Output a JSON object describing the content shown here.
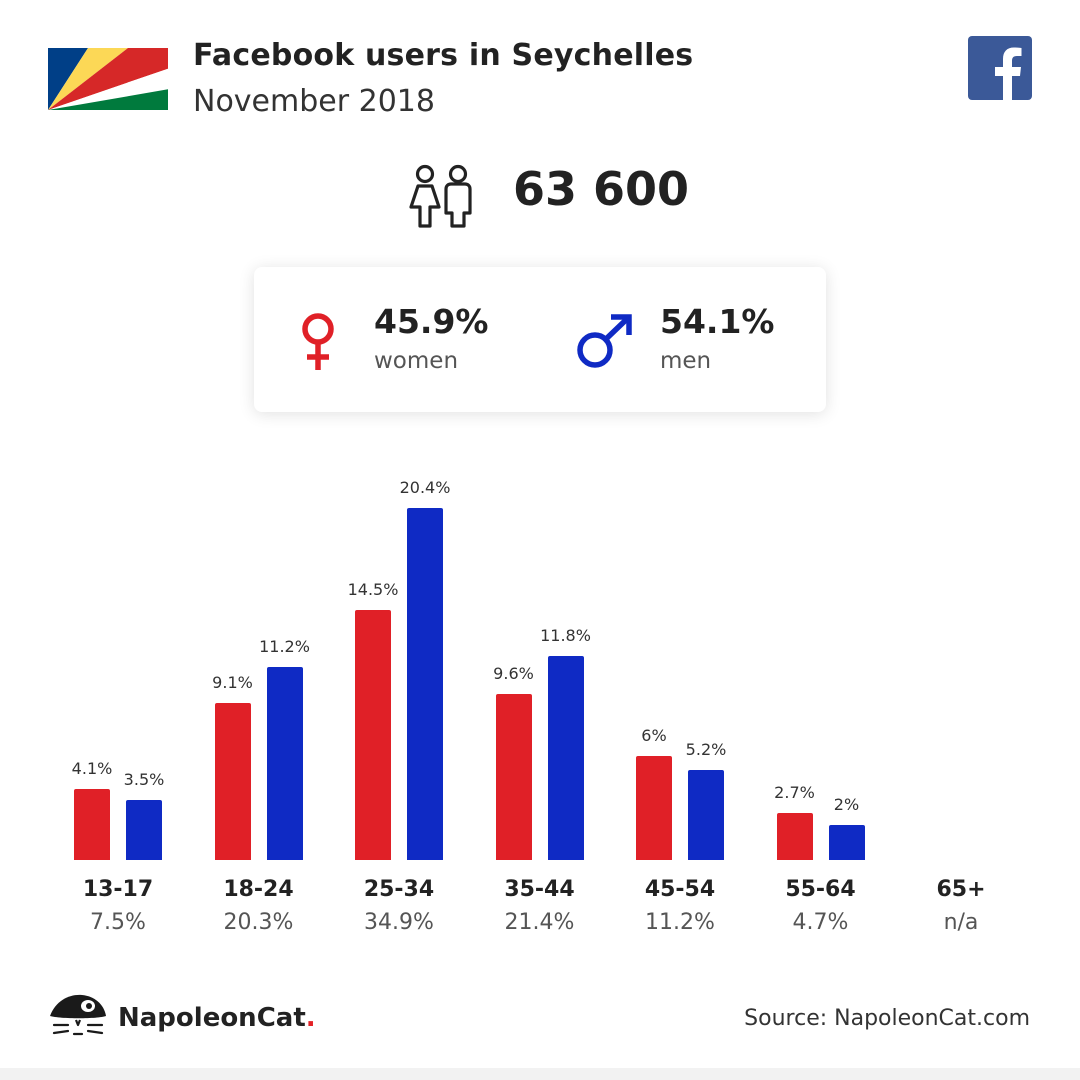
{
  "header": {
    "title": "Facebook users in Seychelles",
    "subtitle": "November 2018"
  },
  "total_users": "63 600",
  "gender": {
    "women": {
      "percent": "45.9%",
      "label": "women"
    },
    "men": {
      "percent": "54.1%",
      "label": "men"
    }
  },
  "colors": {
    "women": "#e02027",
    "men": "#0f2ac4",
    "facebook": "#3b5998"
  },
  "icons": [
    "seychelles-flag-icon",
    "facebook-logo-icon",
    "users-icon",
    "female-symbol-icon",
    "male-symbol-icon",
    "napoleoncat-logo-icon"
  ],
  "chart_data": {
    "type": "bar",
    "categories": [
      "13-17",
      "18-24",
      "25-34",
      "35-44",
      "45-54",
      "55-64",
      "65+"
    ],
    "category_totals": [
      "7.5%",
      "20.3%",
      "34.9%",
      "21.4%",
      "11.2%",
      "4.7%",
      "n/a"
    ],
    "series": [
      {
        "name": "women",
        "values": [
          4.1,
          9.1,
          14.5,
          9.6,
          6,
          2.7,
          null
        ],
        "labels": [
          "4.1%",
          "9.1%",
          "14.5%",
          "9.6%",
          "6%",
          "2.7%",
          ""
        ]
      },
      {
        "name": "men",
        "values": [
          3.5,
          11.2,
          20.4,
          11.8,
          5.2,
          2,
          null
        ],
        "labels": [
          "3.5%",
          "11.2%",
          "20.4%",
          "11.8%",
          "5.2%",
          "2%",
          ""
        ]
      }
    ],
    "ylim": [
      0,
      20.4
    ],
    "grid": false,
    "legend": "none"
  },
  "footer": {
    "brand_name": "NapoleonCat",
    "brand_dot": ".",
    "source": "Source: NapoleonCat.com"
  }
}
